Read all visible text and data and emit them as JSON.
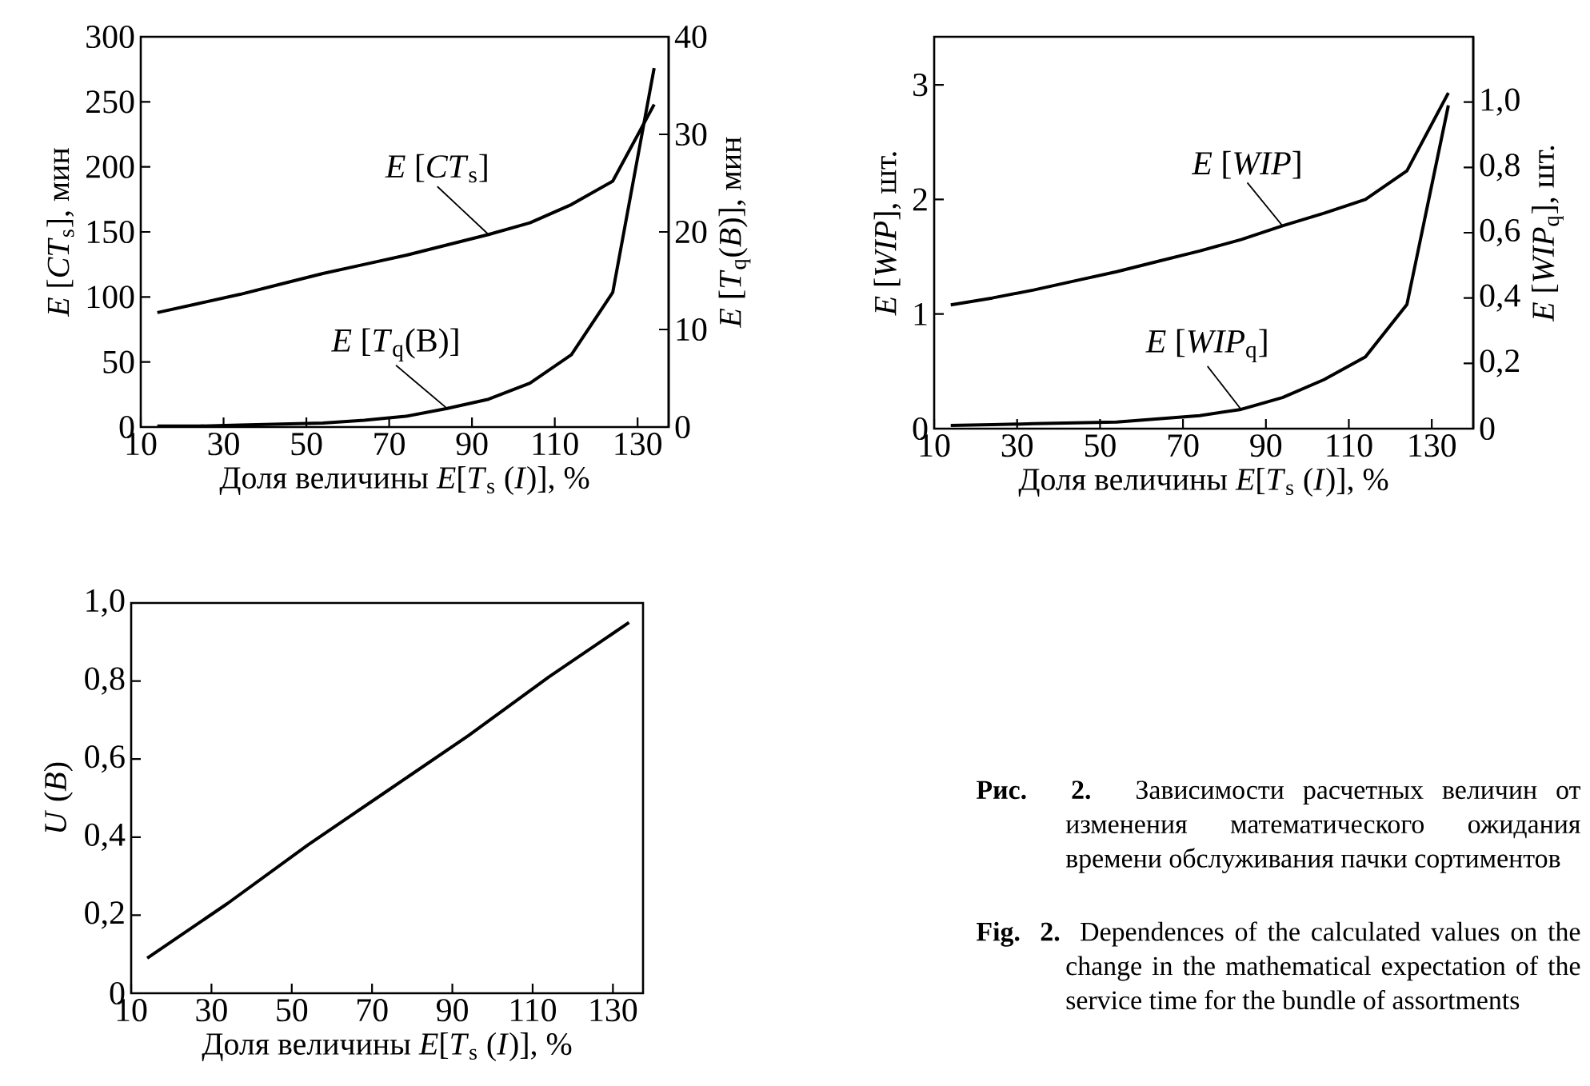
{
  "chart_data": [
    {
      "type": "line",
      "xlabel": "Доля величины *E*[*T*$_{s}$ (*I*)], %",
      "ylabel": "*E* [*CT*$_{s}$], мин",
      "y2label": "*E* [*T*$_{q}$(*B*)], мин",
      "xlim": [
        10,
        137.5
      ],
      "xticks": [
        10,
        30,
        50,
        70,
        90,
        110,
        130
      ],
      "ylim": [
        0,
        300
      ],
      "yticks": [
        0,
        50,
        100,
        150,
        200,
        250,
        300
      ],
      "y2lim": [
        0,
        40
      ],
      "y2ticks": [
        0,
        10,
        20,
        30,
        40
      ],
      "x": [
        14,
        24,
        34,
        44,
        54,
        64,
        74,
        84,
        94,
        104,
        114,
        124,
        134
      ],
      "series": [
        {
          "name": "*E* [*CT*$_{s}$]",
          "color": "#000000",
          "values": [
            88,
            95,
            102,
            110,
            118,
            125,
            132,
            140,
            148,
            157,
            171,
            189,
            248
          ]
        },
        {
          "name": "*E* [*T*$_{q}$(B)]",
          "color": "#000000",
          "axis": "y2",
          "values": [
            0.1,
            0.1,
            0.2,
            0.3,
            0.4,
            0.7,
            1.1,
            1.9,
            2.85,
            4.5,
            7.4,
            13.8,
            36.8
          ]
        }
      ]
    },
    {
      "type": "line",
      "xlabel": "Доля величины *E*[*T*$_{s}$ (*I*)], %",
      "ylabel": "*E* [*WIP*], шт.",
      "y2label": "*E* [*WIP*$_{q}$], шт.",
      "xlim": [
        10,
        140
      ],
      "xticks": [
        10,
        30,
        50,
        70,
        90,
        110,
        130
      ],
      "ylim": [
        0,
        3.42
      ],
      "yticks": [
        0,
        1,
        2,
        3
      ],
      "y2lim": [
        0,
        1.2
      ],
      "y2ticks": [
        0,
        {
          "value": 0.2,
          "label": "0,2"
        },
        {
          "value": 0.4,
          "label": "0,4"
        },
        {
          "value": 0.6,
          "label": "0,6"
        },
        {
          "value": 0.8,
          "label": "0,8"
        },
        {
          "value": 1.0,
          "label": "1,0"
        }
      ],
      "x": [
        14,
        24,
        34,
        44,
        54,
        64,
        74,
        84,
        94,
        104,
        114,
        124,
        134
      ],
      "series": [
        {
          "name": "*E* [*WIP*]",
          "color": "#000000",
          "values": [
            1.08,
            1.14,
            1.21,
            1.29,
            1.37,
            1.46,
            1.55,
            1.65,
            1.77,
            1.88,
            2.0,
            2.25,
            2.93
          ]
        },
        {
          "name": "*E* [*WIP*$_{q}$]",
          "color": "#000000",
          "axis": "y2",
          "values": [
            0.01,
            0.012,
            0.015,
            0.018,
            0.02,
            0.03,
            0.04,
            0.059,
            0.095,
            0.15,
            0.22,
            0.38,
            0.99
          ]
        }
      ]
    },
    {
      "type": "line",
      "xlabel": "Доля величины *E*[*T*$_{s}$ (*I*)], %",
      "ylabel": "*U* (*B*)",
      "xlim": [
        10,
        137.5
      ],
      "xticks": [
        10,
        30,
        50,
        70,
        90,
        110,
        130
      ],
      "ylim": [
        0,
        1.0
      ],
      "yticks": [
        0,
        {
          "value": 0.2,
          "label": "0,2"
        },
        {
          "value": 0.4,
          "label": "0,4"
        },
        {
          "value": 0.6,
          "label": "0,6"
        },
        {
          "value": 0.8,
          "label": "0,8"
        },
        {
          "value": 1.0,
          "label": "1,0"
        }
      ],
      "x": [
        14,
        34,
        54,
        74,
        94,
        114,
        134
      ],
      "series": [
        {
          "color": "#000000",
          "values": [
            0.09,
            0.23,
            0.38,
            0.52,
            0.66,
            0.81,
            0.95
          ]
        }
      ],
      "annotations": [
        "**Рис. 2.** Зависимости расчетных величин от изменения математического ожидания времени обслуживания пачки сортиментов",
        "**Fig. 2.** Dependences of the calculated values on the change in the mathematical expectation of the service time for the bundle of assortments"
      ]
    }
  ]
}
